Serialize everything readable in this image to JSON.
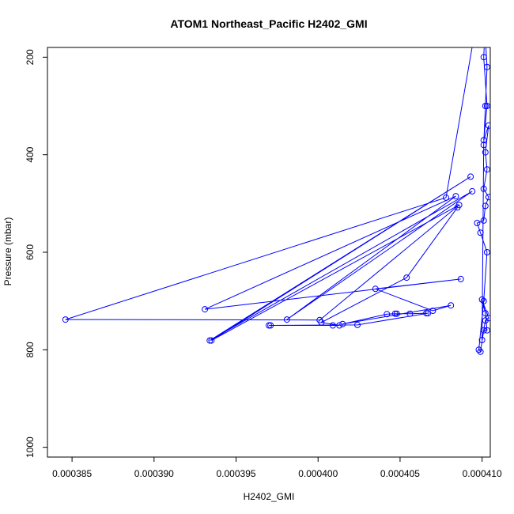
{
  "chart_data": {
    "type": "scatter",
    "title": "ATOM1 Northeast_Pacific H2402_GMI",
    "xlabel": "H2402_GMI",
    "ylabel": "Pressure (mbar)",
    "xlim": [
      0.0003835,
      0.0004105
    ],
    "ylim": [
      1020,
      180
    ],
    "y_axis_reversed": true,
    "x_ticks": [
      {
        "value": 0.000385,
        "label": "0.000385"
      },
      {
        "value": 0.00039,
        "label": "0.000390"
      },
      {
        "value": 0.000395,
        "label": "0.000395"
      },
      {
        "value": 0.0004,
        "label": "0.000400"
      },
      {
        "value": 0.000405,
        "label": "0.000405"
      },
      {
        "value": 0.00041,
        "label": "0.000410"
      }
    ],
    "y_ticks": [
      {
        "value": 200,
        "label": "200"
      },
      {
        "value": 400,
        "label": "400"
      },
      {
        "value": 600,
        "label": "600"
      },
      {
        "value": 800,
        "label": "800"
      },
      {
        "value": 1000,
        "label": "1000"
      }
    ],
    "grid": false,
    "series": [
      {
        "color": "#0000ff",
        "points": [
          [
            0.0004102,
            130
          ],
          [
            0.0004101,
            200
          ],
          [
            0.0004103,
            300
          ],
          [
            0.0004101,
            370
          ],
          [
            0.0004104,
            340
          ],
          [
            0.0004102,
            395
          ],
          [
            0.0004103,
            430
          ],
          [
            0.0004101,
            470
          ],
          [
            0.0004104,
            487
          ],
          [
            0.0004102,
            505
          ],
          [
            0.0004101,
            535
          ],
          [
            0.0004097,
            540
          ],
          [
            0.0004099,
            560
          ],
          [
            0.0004103,
            600
          ],
          [
            0.0004101,
            700
          ],
          [
            0.0004098,
            800
          ],
          [
            0.0004099,
            804
          ],
          [
            0.0004101,
            760
          ],
          [
            0.0004103,
            760
          ],
          [
            0.0004102,
            725
          ],
          [
            0.00041,
            697
          ],
          [
            0.0004104,
            735
          ],
          [
            0.0004102,
            740
          ],
          [
            0.00041,
            780
          ],
          [
            0.0004101,
            380
          ],
          [
            0.0004102,
            300
          ],
          [
            0.0004103,
            220
          ],
          [
            0.0004102,
            160
          ],
          [
            0.0004096,
            140
          ],
          [
            0.0004078,
            488
          ],
          [
            0.0003846,
            738
          ],
          [
            0.0004001,
            739
          ],
          [
            0.0004086,
            503
          ],
          [
            0.0003935,
            781
          ],
          [
            0.0004093,
            445
          ],
          [
            0.0003934,
            781
          ],
          [
            0.0004094,
            475
          ],
          [
            0.0003981,
            738
          ],
          [
            0.0004084,
            485
          ],
          [
            0.0003931,
            717
          ],
          [
            0.0004087,
            655
          ],
          [
            0.0004035,
            675
          ],
          [
            0.000407,
            720
          ],
          [
            0.0004081,
            709
          ],
          [
            0.0004015,
            747
          ],
          [
            0.0004042,
            727
          ],
          [
            0.0004047,
            726
          ],
          [
            0.0004048,
            726
          ],
          [
            0.0004056,
            726
          ],
          [
            0.0004066,
            725
          ],
          [
            0.0004067,
            725
          ],
          [
            0.0004024,
            749
          ],
          [
            0.0003971,
            750
          ],
          [
            0.000397,
            750
          ],
          [
            0.0004009,
            750
          ],
          [
            0.0004013,
            750
          ],
          [
            0.0004002,
            744
          ],
          [
            0.0004054,
            652
          ],
          [
            0.0004085,
            508
          ]
        ]
      }
    ]
  }
}
